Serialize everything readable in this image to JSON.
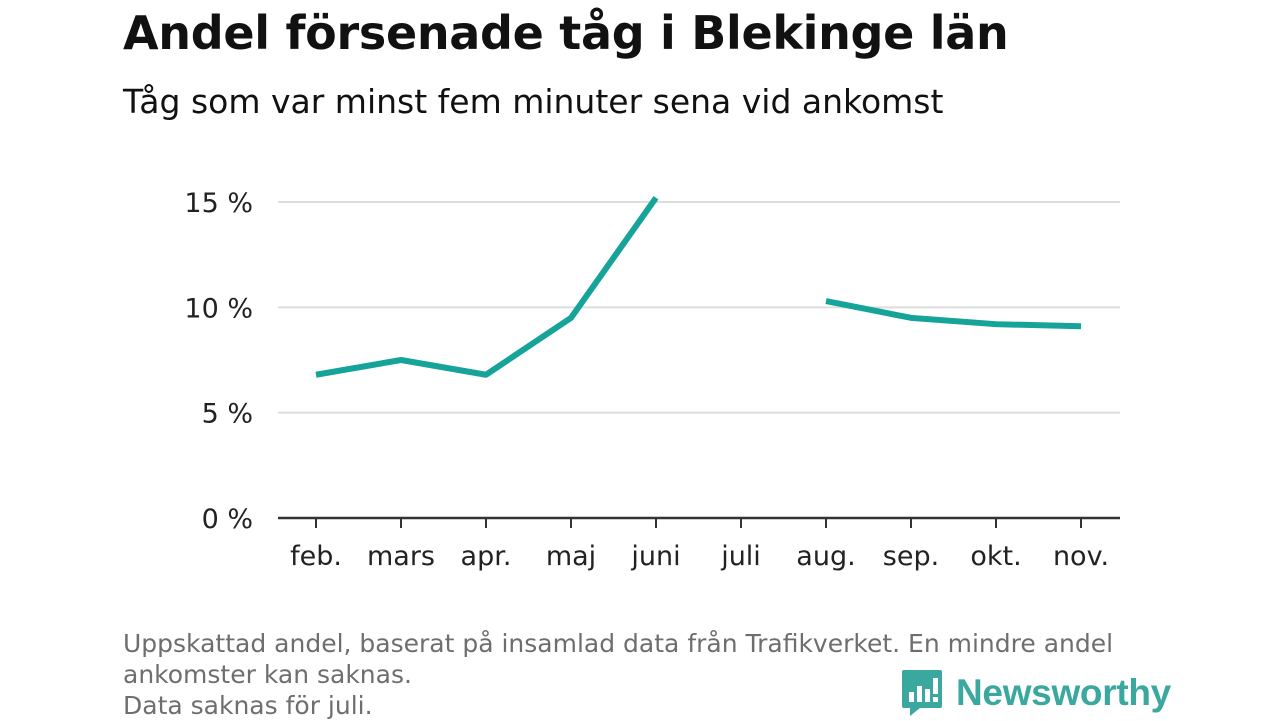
{
  "title": "Andel försenade tåg i Blekinge län",
  "subtitle": "Tåg som var minst fem minuter sena vid ankomst",
  "chart_data": {
    "type": "line",
    "title": "Andel försenade tåg i Blekinge län",
    "subtitle": "Tåg som var minst fem minuter sena vid ankomst",
    "categories": [
      "feb.",
      "mars",
      "apr.",
      "maj",
      "juni",
      "juli",
      "aug.",
      "sep.",
      "okt.",
      "nov."
    ],
    "series": [
      {
        "values": [
          6.8,
          7.5,
          6.8,
          9.5,
          15.2,
          null,
          10.3,
          9.5,
          9.2,
          9.1
        ],
        "color": "#16a39a"
      }
    ],
    "yticks": [
      0,
      5,
      10,
      15
    ],
    "ytick_labels": [
      "0 %",
      "5 %",
      "10 %",
      "15 %"
    ],
    "ylim": [
      0,
      15.5
    ],
    "grid": true,
    "gridline_color": "#dddddd",
    "axis_color": "#333333"
  },
  "notes": [
    "Uppskattad andel, baserat på insamlad data från Trafikverket. En mindre andel",
    "ankomster kan saknas.",
    "Data saknas för juli."
  ],
  "brand": {
    "name": "Newsworthy",
    "icon": "bar-chart-speech-bubble-icon",
    "color": "#3aa89f"
  }
}
